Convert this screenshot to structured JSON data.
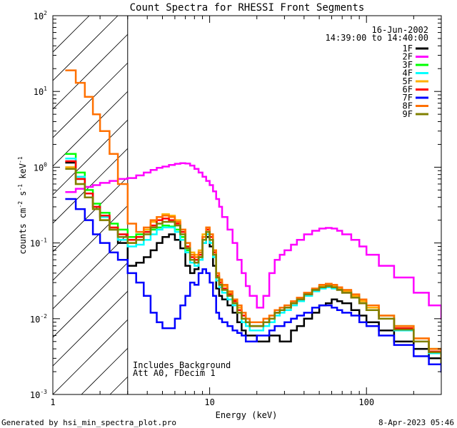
{
  "chart_data": {
    "type": "line",
    "title": "Count Spectra for RHESSI Front Segments",
    "xlabel": "Energy (keV)",
    "ylabel_main": "counts cm",
    "ylabel_sup1": "-2",
    "ylabel_mid": " s",
    "ylabel_sup2": "-1",
    "ylabel_end": " keV",
    "ylabel_sup3": "-1",
    "xscale": "log",
    "yscale": "log",
    "xlim": [
      1,
      300
    ],
    "ylim": [
      0.001,
      100
    ],
    "x_ticks": [
      {
        "v": 1,
        "label": "1"
      },
      {
        "v": 10,
        "label": "10"
      },
      {
        "v": 100,
        "label": "100"
      }
    ],
    "y_ticks": [
      {
        "v": 0.001,
        "base": "10",
        "exp": "-3"
      },
      {
        "v": 0.01,
        "base": "10",
        "exp": "-2"
      },
      {
        "v": 0.1,
        "base": "10",
        "exp": "-1"
      },
      {
        "v": 1,
        "base": "10",
        "exp": "0"
      },
      {
        "v": 10,
        "base": "10",
        "exp": "1"
      },
      {
        "v": 100,
        "base": "10",
        "exp": "2"
      }
    ],
    "shaded_region": {
      "x_from": 1,
      "x_to": 3
    },
    "info": {
      "date": "16-Jun-2002",
      "time_range": "14:39:00 to 14:40:00",
      "note1": "Includes Background",
      "note2": "Att A0, FDecim 1"
    },
    "legend_position": "top-right",
    "series": [
      {
        "name": "1F",
        "color": "#000000",
        "x": [
          1.2,
          1.4,
          1.6,
          1.8,
          2.0,
          2.3,
          2.6,
          3.0,
          3.4,
          3.8,
          4.2,
          4.6,
          5.0,
          5.5,
          6.0,
          6.5,
          7.0,
          7.5,
          8.0,
          8.5,
          9.0,
          9.5,
          10.0,
          10.5,
          11.0,
          11.5,
          12.0,
          13.0,
          14.0,
          15.0,
          16.0,
          17.0,
          18.0,
          20.0,
          22.0,
          24.0,
          26.0,
          28.0,
          30.0,
          33.0,
          36.0,
          40.0,
          45.0,
          50.0,
          55.0,
          60.0,
          65.0,
          70.0,
          80.0,
          90.0,
          100.0,
          120.0,
          150.0,
          200.0,
          250.0,
          300.0
        ],
        "values": [
          1.15,
          0.7,
          0.45,
          0.3,
          0.22,
          0.15,
          0.1,
          0.05,
          0.055,
          0.065,
          0.08,
          0.1,
          0.12,
          0.13,
          0.11,
          0.085,
          0.05,
          0.04,
          0.045,
          0.06,
          0.1,
          0.12,
          0.09,
          0.05,
          0.025,
          0.02,
          0.018,
          0.015,
          0.012,
          0.009,
          0.007,
          0.006,
          0.006,
          0.005,
          0.005,
          0.006,
          0.006,
          0.005,
          0.005,
          0.007,
          0.008,
          0.01,
          0.012,
          0.015,
          0.016,
          0.018,
          0.017,
          0.016,
          0.013,
          0.011,
          0.009,
          0.007,
          0.005,
          0.004,
          0.003,
          0.0025
        ]
      },
      {
        "name": "2F",
        "color": "#ff00ff",
        "x": [
          1.2,
          1.4,
          1.6,
          1.8,
          2.0,
          2.3,
          2.6,
          3.0,
          3.4,
          3.8,
          4.2,
          4.6,
          5.0,
          5.5,
          6.0,
          6.5,
          7.0,
          7.5,
          8.0,
          8.5,
          9.0,
          9.5,
          10.0,
          10.5,
          11.0,
          11.5,
          12.0,
          13.0,
          14.0,
          15.0,
          16.0,
          17.0,
          18.0,
          20.0,
          22.0,
          24.0,
          26.0,
          28.0,
          30.0,
          33.0,
          36.0,
          40.0,
          45.0,
          50.0,
          55.0,
          60.0,
          65.0,
          70.0,
          80.0,
          90.0,
          100.0,
          120.0,
          150.0,
          200.0,
          250.0,
          300.0
        ],
        "values": [
          0.47,
          0.52,
          0.55,
          0.58,
          0.62,
          0.66,
          0.7,
          0.72,
          0.78,
          0.85,
          0.92,
          0.98,
          1.02,
          1.07,
          1.11,
          1.13,
          1.12,
          1.05,
          0.95,
          0.85,
          0.75,
          0.66,
          0.58,
          0.48,
          0.38,
          0.3,
          0.22,
          0.15,
          0.1,
          0.06,
          0.04,
          0.027,
          0.02,
          0.014,
          0.02,
          0.04,
          0.06,
          0.07,
          0.08,
          0.095,
          0.11,
          0.13,
          0.145,
          0.155,
          0.158,
          0.155,
          0.145,
          0.13,
          0.11,
          0.09,
          0.07,
          0.05,
          0.035,
          0.022,
          0.015,
          0.01
        ]
      },
      {
        "name": "3F",
        "color": "#00ff00",
        "x": [
          1.2,
          1.4,
          1.6,
          1.8,
          2.0,
          2.3,
          2.6,
          3.0,
          3.4,
          3.8,
          4.2,
          4.6,
          5.0,
          5.5,
          6.0,
          6.5,
          7.0,
          7.5,
          8.0,
          8.5,
          9.0,
          9.5,
          10.0,
          10.5,
          11.0,
          11.5,
          12.0,
          13.0,
          14.0,
          15.0,
          16.0,
          17.0,
          18.0,
          20.0,
          22.0,
          24.0,
          26.0,
          28.0,
          30.0,
          33.0,
          36.0,
          40.0,
          45.0,
          50.0,
          55.0,
          60.0,
          65.0,
          70.0,
          80.0,
          90.0,
          100.0,
          120.0,
          150.0,
          200.0,
          250.0,
          300.0
        ],
        "values": [
          1.5,
          0.85,
          0.5,
          0.33,
          0.25,
          0.18,
          0.15,
          0.12,
          0.13,
          0.14,
          0.15,
          0.16,
          0.17,
          0.165,
          0.15,
          0.12,
          0.08,
          0.06,
          0.055,
          0.065,
          0.11,
          0.14,
          0.11,
          0.07,
          0.035,
          0.028,
          0.024,
          0.02,
          0.016,
          0.013,
          0.01,
          0.009,
          0.008,
          0.008,
          0.009,
          0.01,
          0.012,
          0.013,
          0.014,
          0.016,
          0.018,
          0.021,
          0.024,
          0.027,
          0.028,
          0.027,
          0.025,
          0.023,
          0.02,
          0.017,
          0.014,
          0.011,
          0.008,
          0.005,
          0.004,
          0.003
        ]
      },
      {
        "name": "4F",
        "color": "#00ffff",
        "x": [
          1.2,
          1.4,
          1.6,
          1.8,
          2.0,
          2.3,
          2.6,
          3.0,
          3.4,
          3.8,
          4.2,
          4.6,
          5.0,
          5.5,
          6.0,
          6.5,
          7.0,
          7.5,
          8.0,
          8.5,
          9.0,
          9.5,
          10.0,
          10.5,
          11.0,
          11.5,
          12.0,
          13.0,
          14.0,
          15.0,
          16.0,
          17.0,
          18.0,
          20.0,
          22.0,
          24.0,
          26.0,
          28.0,
          30.0,
          33.0,
          36.0,
          40.0,
          45.0,
          50.0,
          55.0,
          60.0,
          65.0,
          70.0,
          80.0,
          90.0,
          100.0,
          120.0,
          150.0,
          200.0,
          250.0,
          300.0
        ],
        "values": [
          1.3,
          0.75,
          0.45,
          0.3,
          0.22,
          0.15,
          0.11,
          0.09,
          0.095,
          0.11,
          0.13,
          0.15,
          0.16,
          0.16,
          0.14,
          0.11,
          0.075,
          0.055,
          0.05,
          0.06,
          0.1,
          0.13,
          0.1,
          0.065,
          0.032,
          0.026,
          0.022,
          0.018,
          0.015,
          0.012,
          0.009,
          0.008,
          0.007,
          0.007,
          0.008,
          0.009,
          0.011,
          0.012,
          0.013,
          0.015,
          0.017,
          0.02,
          0.023,
          0.025,
          0.026,
          0.025,
          0.024,
          0.022,
          0.019,
          0.016,
          0.013,
          0.01,
          0.007,
          0.005,
          0.0035,
          0.0028
        ]
      },
      {
        "name": "5F",
        "color": "#ffb000",
        "x": [
          1.2,
          1.4,
          1.6,
          1.8,
          2.0,
          2.3,
          2.6,
          3.0,
          3.4,
          3.8,
          4.2,
          4.6,
          5.0,
          5.5,
          6.0,
          6.5,
          7.0,
          7.5,
          8.0,
          8.5,
          9.0,
          9.5,
          10.0,
          10.5,
          11.0,
          11.5,
          12.0,
          13.0,
          14.0,
          15.0,
          16.0,
          17.0,
          18.0,
          20.0,
          22.0,
          24.0,
          26.0,
          28.0,
          30.0,
          33.0,
          36.0,
          40.0,
          45.0,
          50.0,
          55.0,
          60.0,
          65.0,
          70.0,
          80.0,
          90.0,
          100.0,
          120.0,
          150.0,
          200.0,
          250.0,
          300.0
        ],
        "values": [
          1.0,
          0.6,
          0.4,
          0.28,
          0.2,
          0.15,
          0.12,
          0.1,
          0.12,
          0.15,
          0.19,
          0.22,
          0.24,
          0.23,
          0.2,
          0.15,
          0.1,
          0.075,
          0.07,
          0.08,
          0.13,
          0.16,
          0.13,
          0.08,
          0.04,
          0.032,
          0.027,
          0.022,
          0.018,
          0.014,
          0.011,
          0.01,
          0.009,
          0.009,
          0.01,
          0.011,
          0.013,
          0.014,
          0.015,
          0.017,
          0.019,
          0.022,
          0.025,
          0.027,
          0.028,
          0.027,
          0.025,
          0.023,
          0.02,
          0.017,
          0.014,
          0.011,
          0.008,
          0.0055,
          0.004,
          0.003
        ]
      },
      {
        "name": "6F",
        "color": "#ff0000",
        "x": [
          1.2,
          1.4,
          1.6,
          1.8,
          2.0,
          2.3,
          2.6,
          3.0,
          3.4,
          3.8,
          4.2,
          4.6,
          5.0,
          5.5,
          6.0,
          6.5,
          7.0,
          7.5,
          8.0,
          8.5,
          9.0,
          9.5,
          10.0,
          10.5,
          11.0,
          11.5,
          12.0,
          13.0,
          14.0,
          15.0,
          16.0,
          17.0,
          18.0,
          20.0,
          22.0,
          24.0,
          26.0,
          28.0,
          30.0,
          33.0,
          36.0,
          40.0,
          45.0,
          50.0,
          55.0,
          60.0,
          65.0,
          70.0,
          80.0,
          90.0,
          100.0,
          120.0,
          150.0,
          200.0,
          250.0,
          300.0
        ],
        "values": [
          1.2,
          0.7,
          0.45,
          0.3,
          0.23,
          0.16,
          0.13,
          0.11,
          0.12,
          0.14,
          0.17,
          0.2,
          0.21,
          0.2,
          0.18,
          0.14,
          0.09,
          0.065,
          0.06,
          0.07,
          0.12,
          0.15,
          0.12,
          0.075,
          0.037,
          0.03,
          0.025,
          0.021,
          0.017,
          0.013,
          0.011,
          0.009,
          0.008,
          0.008,
          0.009,
          0.01,
          0.012,
          0.013,
          0.014,
          0.016,
          0.018,
          0.021,
          0.024,
          0.026,
          0.027,
          0.026,
          0.024,
          0.022,
          0.019,
          0.016,
          0.013,
          0.01,
          0.0075,
          0.005,
          0.0037,
          0.0028
        ]
      },
      {
        "name": "7F",
        "color": "#0000ff",
        "x": [
          1.2,
          1.4,
          1.6,
          1.8,
          2.0,
          2.3,
          2.6,
          3.0,
          3.4,
          3.8,
          4.2,
          4.6,
          5.0,
          5.5,
          6.0,
          6.5,
          7.0,
          7.5,
          8.0,
          8.5,
          9.0,
          9.5,
          10.0,
          10.5,
          11.0,
          11.5,
          12.0,
          13.0,
          14.0,
          15.0,
          16.0,
          17.0,
          18.0,
          20.0,
          22.0,
          24.0,
          26.0,
          28.0,
          30.0,
          33.0,
          36.0,
          40.0,
          45.0,
          50.0,
          55.0,
          60.0,
          65.0,
          70.0,
          80.0,
          90.0,
          100.0,
          120.0,
          150.0,
          200.0,
          250.0,
          300.0
        ],
        "values": [
          0.38,
          0.28,
          0.2,
          0.13,
          0.1,
          0.075,
          0.06,
          0.04,
          0.03,
          0.02,
          0.012,
          0.009,
          0.0075,
          0.0075,
          0.01,
          0.015,
          0.02,
          0.03,
          0.028,
          0.04,
          0.045,
          0.04,
          0.03,
          0.02,
          0.012,
          0.01,
          0.009,
          0.008,
          0.007,
          0.0065,
          0.006,
          0.005,
          0.005,
          0.006,
          0.006,
          0.007,
          0.008,
          0.008,
          0.009,
          0.01,
          0.011,
          0.012,
          0.014,
          0.015,
          0.015,
          0.014,
          0.013,
          0.012,
          0.011,
          0.009,
          0.008,
          0.006,
          0.0045,
          0.0032,
          0.0025,
          0.002
        ]
      },
      {
        "name": "8F",
        "color": "#ff7000",
        "x": [
          1.2,
          1.4,
          1.6,
          1.8,
          2.0,
          2.3,
          2.6,
          3.0,
          3.4,
          3.8,
          4.2,
          4.6,
          5.0,
          5.5,
          6.0,
          6.5,
          7.0,
          7.5,
          8.0,
          8.5,
          9.0,
          9.5,
          10.0,
          10.5,
          11.0,
          11.5,
          12.0,
          13.0,
          14.0,
          15.0,
          16.0,
          17.0,
          18.0,
          20.0,
          22.0,
          24.0,
          26.0,
          28.0,
          30.0,
          33.0,
          36.0,
          40.0,
          45.0,
          50.0,
          55.0,
          60.0,
          65.0,
          70.0,
          80.0,
          90.0,
          100.0,
          120.0,
          150.0,
          200.0,
          250.0,
          300.0
        ],
        "values": [
          19.0,
          13.0,
          8.5,
          5.0,
          3.0,
          1.5,
          0.6,
          0.18,
          0.14,
          0.16,
          0.2,
          0.22,
          0.23,
          0.22,
          0.19,
          0.15,
          0.1,
          0.07,
          0.065,
          0.075,
          0.12,
          0.16,
          0.13,
          0.08,
          0.04,
          0.033,
          0.028,
          0.023,
          0.018,
          0.015,
          0.012,
          0.01,
          0.009,
          0.009,
          0.01,
          0.011,
          0.013,
          0.014,
          0.015,
          0.017,
          0.019,
          0.022,
          0.025,
          0.028,
          0.029,
          0.028,
          0.026,
          0.024,
          0.021,
          0.018,
          0.015,
          0.011,
          0.008,
          0.0055,
          0.004,
          0.003
        ]
      },
      {
        "name": "9F",
        "color": "#808000",
        "x": [
          1.2,
          1.4,
          1.6,
          1.8,
          2.0,
          2.3,
          2.6,
          3.0,
          3.4,
          3.8,
          4.2,
          4.6,
          5.0,
          5.5,
          6.0,
          6.5,
          7.0,
          7.5,
          8.0,
          8.5,
          9.0,
          9.5,
          10.0,
          10.5,
          11.0,
          11.5,
          12.0,
          13.0,
          14.0,
          15.0,
          16.0,
          17.0,
          18.0,
          20.0,
          22.0,
          24.0,
          26.0,
          28.0,
          30.0,
          33.0,
          36.0,
          40.0,
          45.0,
          50.0,
          55.0,
          60.0,
          65.0,
          70.0,
          80.0,
          90.0,
          100.0,
          120.0,
          150.0,
          200.0,
          250.0,
          300.0
        ],
        "values": [
          0.95,
          0.6,
          0.4,
          0.28,
          0.2,
          0.15,
          0.12,
          0.1,
          0.11,
          0.13,
          0.16,
          0.18,
          0.19,
          0.19,
          0.17,
          0.13,
          0.085,
          0.06,
          0.055,
          0.065,
          0.11,
          0.14,
          0.11,
          0.07,
          0.035,
          0.028,
          0.024,
          0.02,
          0.016,
          0.012,
          0.01,
          0.009,
          0.008,
          0.008,
          0.009,
          0.01,
          0.012,
          0.013,
          0.014,
          0.016,
          0.018,
          0.021,
          0.024,
          0.026,
          0.027,
          0.026,
          0.024,
          0.022,
          0.019,
          0.016,
          0.013,
          0.01,
          0.0072,
          0.005,
          0.0036,
          0.0027
        ]
      }
    ]
  },
  "footer": {
    "left": "Generated by hsi_min_spectra_plot.pro",
    "right": "8-Apr-2023 05:46"
  }
}
